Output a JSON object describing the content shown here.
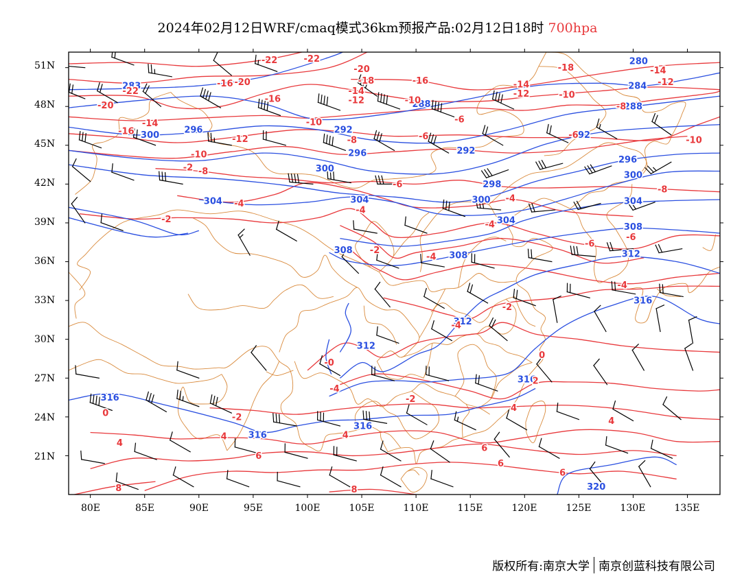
{
  "title": {
    "main": "2024年02月12日WRF/cmaq模式36km预报产品:02月12日18时",
    "level": "700hpa",
    "level_color": "#e8383b"
  },
  "axes": {
    "lat_labels": [
      "51N",
      "48N",
      "45N",
      "42N",
      "39N",
      "36N",
      "33N",
      "30N",
      "27N",
      "24N",
      "21N"
    ],
    "lon_labels": [
      "80E",
      "85E",
      "90E",
      "95E",
      "100E",
      "105E",
      "110E",
      "115E",
      "120E",
      "125E",
      "130E",
      "135E"
    ],
    "lat_values": [
      51,
      48,
      45,
      42,
      39,
      36,
      33,
      30,
      27,
      24,
      21
    ],
    "lon_values": [
      80,
      85,
      90,
      95,
      100,
      105,
      110,
      115,
      120,
      125,
      130,
      135
    ],
    "lon_range": [
      78,
      138
    ],
    "lat_range": [
      18,
      52.2
    ]
  },
  "colors": {
    "height_contours": "#2a4fe0",
    "temperature_contours": "#e8383b",
    "boundaries": "#d98a3c",
    "wind_barbs": "#000000"
  },
  "height_labels": [
    {
      "text": "280",
      "lon": 130.5,
      "lat": 51.5
    },
    {
      "text": "284",
      "lon": 130.4,
      "lat": 49.6
    },
    {
      "text": "288",
      "lon": 130.0,
      "lat": 48.0
    },
    {
      "text": "292",
      "lon": 125.2,
      "lat": 45.8
    },
    {
      "text": "296",
      "lon": 129.5,
      "lat": 43.9
    },
    {
      "text": "300",
      "lon": 130.0,
      "lat": 42.7
    },
    {
      "text": "304",
      "lon": 130.0,
      "lat": 40.7
    },
    {
      "text": "308",
      "lon": 130.0,
      "lat": 38.7
    },
    {
      "text": "312",
      "lon": 129.8,
      "lat": 36.6
    },
    {
      "text": "316",
      "lon": 130.9,
      "lat": 33.0
    },
    {
      "text": "320",
      "lon": 126.6,
      "lat": 18.6
    },
    {
      "text": "283",
      "lon": 83.8,
      "lat": 49.6
    },
    {
      "text": "296",
      "lon": 89.5,
      "lat": 46.2
    },
    {
      "text": "300",
      "lon": 85.5,
      "lat": 45.8
    },
    {
      "text": "304",
      "lon": 91.3,
      "lat": 40.7
    },
    {
      "text": "288",
      "lon": 110.5,
      "lat": 48.2
    },
    {
      "text": "292",
      "lon": 103.3,
      "lat": 46.2
    },
    {
      "text": "296",
      "lon": 104.6,
      "lat": 44.4
    },
    {
      "text": "292",
      "lon": 114.6,
      "lat": 44.6
    },
    {
      "text": "300",
      "lon": 101.6,
      "lat": 43.2
    },
    {
      "text": "298",
      "lon": 117.0,
      "lat": 42.0
    },
    {
      "text": "300",
      "lon": 116.0,
      "lat": 40.8
    },
    {
      "text": "304",
      "lon": 104.8,
      "lat": 40.8
    },
    {
      "text": "304",
      "lon": 118.3,
      "lat": 39.2
    },
    {
      "text": "308",
      "lon": 103.3,
      "lat": 36.9
    },
    {
      "text": "308",
      "lon": 113.9,
      "lat": 36.5
    },
    {
      "text": "312",
      "lon": 114.3,
      "lat": 31.4
    },
    {
      "text": "312",
      "lon": 105.4,
      "lat": 29.5
    },
    {
      "text": "316",
      "lon": 120.2,
      "lat": 26.9
    },
    {
      "text": "316",
      "lon": 81.8,
      "lat": 25.5
    },
    {
      "text": "316",
      "lon": 95.4,
      "lat": 22.6
    },
    {
      "text": "316",
      "lon": 105.1,
      "lat": 23.3
    }
  ],
  "temp_labels": [
    {
      "text": "-22",
      "lon": 96.5,
      "lat": 51.6
    },
    {
      "text": "-22",
      "lon": 100.4,
      "lat": 51.7
    },
    {
      "text": "-20",
      "lon": 105.0,
      "lat": 50.9
    },
    {
      "text": "-18",
      "lon": 123.8,
      "lat": 51.0
    },
    {
      "text": "-14",
      "lon": 132.3,
      "lat": 50.8
    },
    {
      "text": "-12",
      "lon": 133.0,
      "lat": 49.9
    },
    {
      "text": "-22",
      "lon": 83.7,
      "lat": 49.2
    },
    {
      "text": "-20",
      "lon": 94.0,
      "lat": 49.9
    },
    {
      "text": "-16",
      "lon": 92.4,
      "lat": 49.8
    },
    {
      "text": "-18",
      "lon": 105.4,
      "lat": 50.0
    },
    {
      "text": "-16",
      "lon": 110.4,
      "lat": 50.0
    },
    {
      "text": "-14",
      "lon": 119.7,
      "lat": 49.7
    },
    {
      "text": "-12",
      "lon": 119.7,
      "lat": 49.0
    },
    {
      "text": "-14",
      "lon": 104.5,
      "lat": 49.2
    },
    {
      "text": "-12",
      "lon": 104.5,
      "lat": 48.5
    },
    {
      "text": "-10",
      "lon": 123.9,
      "lat": 48.9
    },
    {
      "text": "-20",
      "lon": 81.4,
      "lat": 48.1
    },
    {
      "text": "-16",
      "lon": 96.8,
      "lat": 48.6
    },
    {
      "text": "-10",
      "lon": 109.7,
      "lat": 48.5
    },
    {
      "text": "-8",
      "lon": 128.9,
      "lat": 48.0
    },
    {
      "text": "-16",
      "lon": 83.3,
      "lat": 46.1
    },
    {
      "text": "-14",
      "lon": 85.5,
      "lat": 46.7
    },
    {
      "text": "-10",
      "lon": 100.6,
      "lat": 46.8
    },
    {
      "text": "-8",
      "lon": 104.1,
      "lat": 45.4
    },
    {
      "text": "-6",
      "lon": 114.0,
      "lat": 47.0
    },
    {
      "text": "-6",
      "lon": 124.5,
      "lat": 45.8
    },
    {
      "text": "-10",
      "lon": 135.6,
      "lat": 45.4
    },
    {
      "text": "-12",
      "lon": 93.8,
      "lat": 45.5
    },
    {
      "text": "-10",
      "lon": 90.0,
      "lat": 44.3
    },
    {
      "text": "-6",
      "lon": 110.7,
      "lat": 45.7
    },
    {
      "text": "-8",
      "lon": 90.4,
      "lat": 43.0
    },
    {
      "text": "-2",
      "lon": 89.0,
      "lat": 43.3
    },
    {
      "text": "-6",
      "lon": 108.3,
      "lat": 42.0
    },
    {
      "text": "-8",
      "lon": 132.7,
      "lat": 41.6
    },
    {
      "text": "-4",
      "lon": 118.7,
      "lat": 40.9
    },
    {
      "text": "-4",
      "lon": 93.7,
      "lat": 40.5
    },
    {
      "text": "-4",
      "lon": 104.9,
      "lat": 40.0
    },
    {
      "text": "-2",
      "lon": 87.0,
      "lat": 39.3
    },
    {
      "text": "-4",
      "lon": 116.8,
      "lat": 38.9
    },
    {
      "text": "-6",
      "lon": 126.0,
      "lat": 37.4
    },
    {
      "text": "-6",
      "lon": 129.8,
      "lat": 37.9
    },
    {
      "text": "-2",
      "lon": 106.2,
      "lat": 36.9
    },
    {
      "text": "-4",
      "lon": 111.4,
      "lat": 36.4
    },
    {
      "text": "-4",
      "lon": 129.0,
      "lat": 34.2
    },
    {
      "text": "-2",
      "lon": 118.4,
      "lat": 32.5
    },
    {
      "text": "-4",
      "lon": 113.7,
      "lat": 31.1
    },
    {
      "text": "0",
      "lon": 121.6,
      "lat": 28.8
    },
    {
      "text": "-0",
      "lon": 102.0,
      "lat": 28.2
    },
    {
      "text": "-4",
      "lon": 102.5,
      "lat": 26.2
    },
    {
      "text": "2",
      "lon": 121.0,
      "lat": 26.8
    },
    {
      "text": "-2",
      "lon": 109.5,
      "lat": 25.4
    },
    {
      "text": "4",
      "lon": 119.0,
      "lat": 24.7
    },
    {
      "text": "-2",
      "lon": 93.5,
      "lat": 24.0
    },
    {
      "text": "4",
      "lon": 128.0,
      "lat": 23.7
    },
    {
      "text": "4",
      "lon": 82.7,
      "lat": 22.0
    },
    {
      "text": "4",
      "lon": 92.3,
      "lat": 22.5
    },
    {
      "text": "4",
      "lon": 103.5,
      "lat": 22.6
    },
    {
      "text": "6",
      "lon": 95.5,
      "lat": 21.0
    },
    {
      "text": "6",
      "lon": 116.3,
      "lat": 21.6
    },
    {
      "text": "6",
      "lon": 117.8,
      "lat": 20.4
    },
    {
      "text": "6",
      "lon": 123.5,
      "lat": 19.7
    },
    {
      "text": "8",
      "lon": 82.6,
      "lat": 18.5
    },
    {
      "text": "8",
      "lon": 104.3,
      "lat": 18.4
    },
    {
      "text": "0",
      "lon": 81.4,
      "lat": 24.3
    }
  ],
  "credit": {
    "left": "版权所有:南京大学",
    "right": "南京创蓝科技有限公司"
  }
}
